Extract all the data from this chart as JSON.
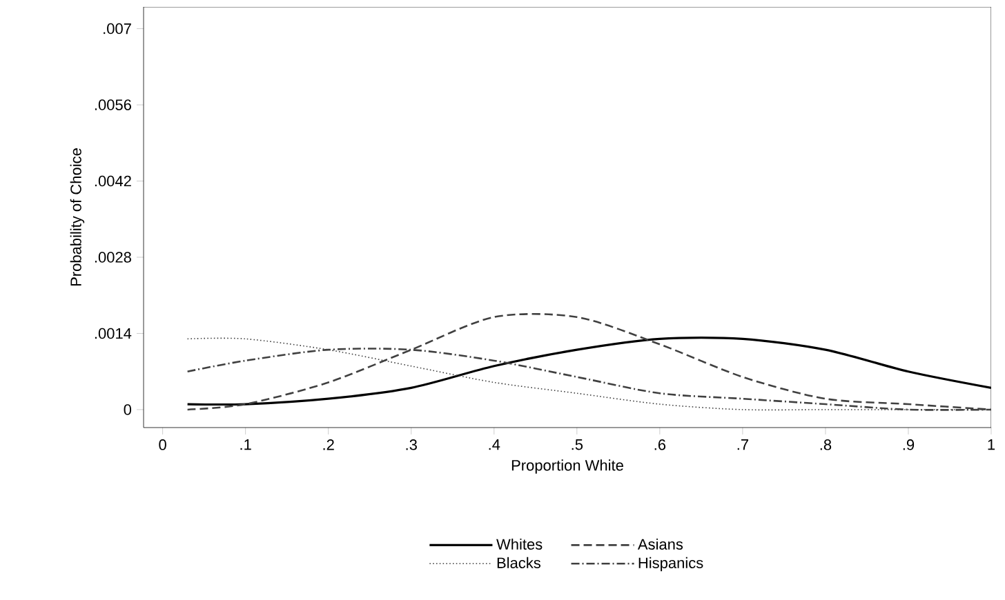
{
  "chart_data": {
    "type": "line",
    "xlabel": "Proportion White",
    "ylabel": "Probability of Choice",
    "x": [
      0.03,
      0.1,
      0.2,
      0.3,
      0.4,
      0.5,
      0.6,
      0.7,
      0.8,
      0.9,
      1
    ],
    "series": [
      {
        "name": "Whites",
        "color": "#000000",
        "line_style": "solid",
        "values": [
          0.0001,
          0.0001,
          0.0002,
          0.0004,
          0.0008,
          0.0011,
          0.0013,
          0.0013,
          0.0011,
          0.0007,
          0.0004
        ]
      },
      {
        "name": "Asians",
        "color": "#404040",
        "line_style": "dashed",
        "values": [
          0,
          0.0001,
          0.0005,
          0.0011,
          0.0017,
          0.0017,
          0.0012,
          0.0006,
          0.0002,
          0.0001,
          0
        ]
      },
      {
        "name": "Blacks",
        "color": "#404040",
        "line_style": "dotted",
        "values": [
          0.0013,
          0.0013,
          0.0011,
          0.0008,
          0.0005,
          0.0003,
          0.0001,
          0,
          0,
          0,
          0
        ]
      },
      {
        "name": "Hispanics",
        "color": "#404040",
        "line_style": "dashdot",
        "values": [
          0.0007,
          0.0009,
          0.0011,
          0.0011,
          0.0009,
          0.0006,
          0.0003,
          0.0002,
          0.0001,
          0,
          0
        ]
      }
    ],
    "xlim": [
      -0.023,
      1.0
    ],
    "ylim": [
      -0.00033,
      0.0074
    ],
    "xticks": [
      0,
      {
        "value": 0.1,
        "label": ".1"
      },
      {
        "value": 0.2,
        "label": ".2"
      },
      {
        "value": 0.3,
        "label": ".3"
      },
      {
        "value": 0.4,
        "label": ".4"
      },
      {
        "value": 0.5,
        "label": ".5"
      },
      {
        "value": 0.6,
        "label": ".6"
      },
      {
        "value": 0.7,
        "label": ".7"
      },
      {
        "value": 0.8,
        "label": ".8"
      },
      {
        "value": 0.9,
        "label": ".9"
      },
      1
    ],
    "yticks": [
      0,
      {
        "value": 0.0014,
        "label": ".0014"
      },
      {
        "value": 0.0028,
        "label": ".0028"
      },
      {
        "value": 0.0042,
        "label": ".0042"
      },
      {
        "value": 0.0056,
        "label": ".0056"
      },
      {
        "value": 0.007,
        "label": ".007"
      }
    ],
    "grid": false,
    "legend": "bottom",
    "marker": "none"
  }
}
